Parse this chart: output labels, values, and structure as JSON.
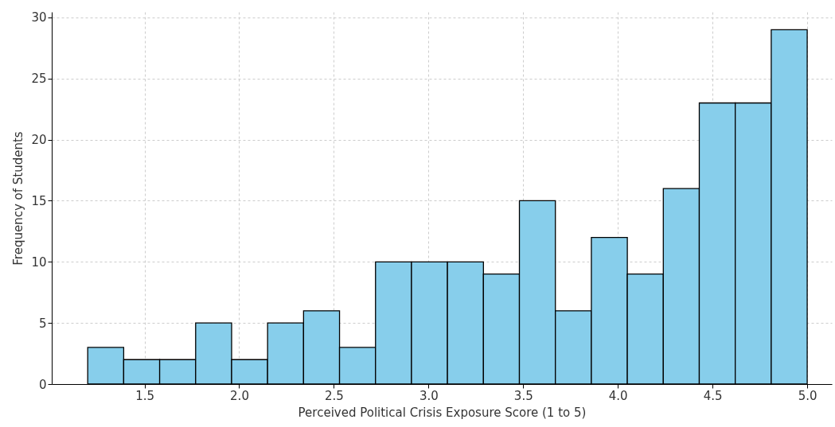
{
  "chart_data": {
    "type": "histogram",
    "xlabel": "Perceived Political Crisis Exposure Score (1 to 5)",
    "ylabel": "Frequency of Students",
    "bins": [
      1.2,
      1.39,
      1.58,
      1.77,
      1.96,
      2.15,
      2.34,
      2.53,
      2.72,
      2.91,
      3.1,
      3.29,
      3.48,
      3.67,
      3.86,
      4.05,
      4.24,
      4.43,
      4.62,
      4.81,
      5.0
    ],
    "values": [
      3,
      2,
      2,
      5,
      2,
      5,
      6,
      3,
      10,
      10,
      10,
      9,
      15,
      6,
      12,
      9,
      16,
      23,
      23,
      29
    ],
    "color": "#87ceeb",
    "xlim": [
      1.01,
      5.13
    ],
    "xticks": [
      1.5,
      {
        "value": 2,
        "label": "2.0"
      },
      2.5,
      {
        "value": 3,
        "label": "3.0"
      },
      3.5,
      {
        "value": 4,
        "label": "4.0"
      },
      4.5,
      {
        "value": 5,
        "label": "5.0"
      }
    ],
    "ylim": [
      0,
      30.45
    ],
    "yticks": [
      0,
      5,
      10,
      15,
      20,
      25,
      30
    ],
    "grid": true
  }
}
